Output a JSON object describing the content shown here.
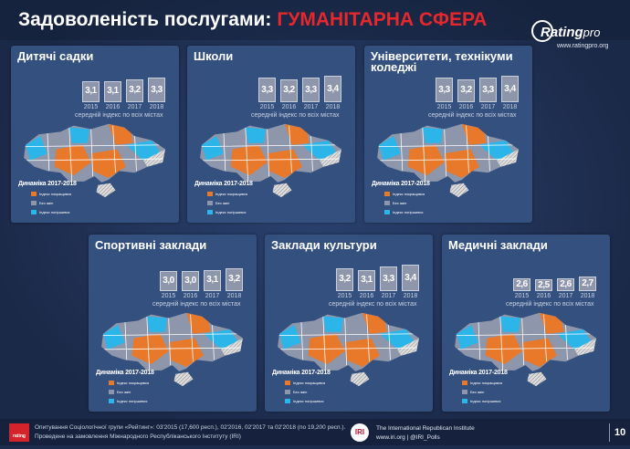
{
  "header": {
    "title": "Задоволеність послугами:",
    "highlight": "ГУМАНІТАРНА СФЕРА"
  },
  "logo": {
    "name": "Rating",
    "suffix": "pro",
    "url": "www.ratingpro.org"
  },
  "chart_data": [
    {
      "type": "bar",
      "title": "Дитячі садки",
      "categories": [
        "2015",
        "2016",
        "2017",
        "2018"
      ],
      "values": [
        3.1,
        3.1,
        3.2,
        3.3
      ],
      "value_labels": [
        "3,1",
        "3,1",
        "3,2",
        "3,3"
      ],
      "subtitle": "середній індекс по всіх містах",
      "color": "#8e96ab"
    },
    {
      "type": "bar",
      "title": "Школи",
      "categories": [
        "2015",
        "2016",
        "2017",
        "2018"
      ],
      "values": [
        3.3,
        3.2,
        3.3,
        3.4
      ],
      "value_labels": [
        "3,3",
        "3,2",
        "3,3",
        "3,4"
      ],
      "subtitle": "середній індекс по всіх містах",
      "color": "#8e96ab"
    },
    {
      "type": "bar",
      "title": "Університети, технікуми коледжі",
      "categories": [
        "2015",
        "2016",
        "2017",
        "2018"
      ],
      "values": [
        3.3,
        3.2,
        3.3,
        3.4
      ],
      "value_labels": [
        "3,3",
        "3,2",
        "3,3",
        "3,4"
      ],
      "subtitle": "середній індекс по всіх містах",
      "color": "#8e96ab"
    },
    {
      "type": "bar",
      "title": "Спортивні заклади",
      "categories": [
        "2015",
        "2016",
        "2017",
        "2018"
      ],
      "values": [
        3.0,
        3.0,
        3.1,
        3.2
      ],
      "value_labels": [
        "3,0",
        "3,0",
        "3,1",
        "3,2"
      ],
      "subtitle": "середній індекс по всіх містах",
      "color": "#8e96ab"
    },
    {
      "type": "bar",
      "title": "Заклади культури",
      "categories": [
        "2015",
        "2016",
        "2017",
        "2018"
      ],
      "values": [
        3.2,
        3.1,
        3.3,
        3.4
      ],
      "value_labels": [
        "3,2",
        "3,1",
        "3,3",
        "3,4"
      ],
      "subtitle": "середній індекс по всіх містах",
      "color": "#8e96ab"
    },
    {
      "type": "bar",
      "title": "Медичні заклади",
      "categories": [
        "2015",
        "2016",
        "2017",
        "2018"
      ],
      "values": [
        2.6,
        2.5,
        2.6,
        2.7
      ],
      "value_labels": [
        "2,6",
        "2,5",
        "2,6",
        "2,7"
      ],
      "subtitle": "середній індекс по всіх містах",
      "color": "#8e96ab"
    }
  ],
  "legend": {
    "title": "Динаміка 2017-2018",
    "items": [
      {
        "label": "Індекс покращився",
        "color": "#e8782a"
      },
      {
        "label": "Без змін",
        "color": "#8e96ab"
      },
      {
        "label": "Індекс погіршився",
        "color": "#2cb5e8"
      }
    ]
  },
  "footer": {
    "badge": "rating",
    "line1": "Опитування Соціологічної групи «Рейтинг»: 03'2015 (17,600 респ.), 02'2016, 02'2017 та 02'2018 (по 19,200 респ.).",
    "line2": "Проведене на замовлення Міжнародного Республіканського Інституту (IRI)",
    "iri": "IRI",
    "org": "The International Republican Institute",
    "links": "www.iri.org | @IRI_Polls",
    "page": "10"
  }
}
